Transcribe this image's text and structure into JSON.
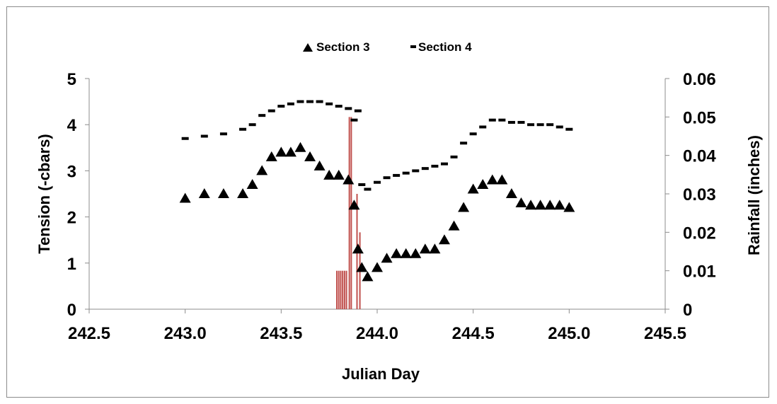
{
  "chart_data": {
    "type": "scatter",
    "title": "",
    "xlabel": "Julian Day",
    "ylabel": "Tension (-cbars)",
    "y2label": "Rainfall (inches)",
    "xlim": [
      242.5,
      245.5
    ],
    "ylim": [
      0,
      5
    ],
    "y2lim": [
      0,
      0.06
    ],
    "x_ticks": [
      "242.5",
      "243.0",
      "243.5",
      "244.0",
      "244.5",
      "245.0",
      "245.5"
    ],
    "y_ticks": [
      "0",
      "1",
      "2",
      "3",
      "4",
      "5"
    ],
    "y2_ticks": [
      "0",
      "0.01",
      "0.02",
      "0.03",
      "0.04",
      "0.05",
      "0.06"
    ],
    "grid": false,
    "legend_position": "top",
    "colors": {
      "section3": "#000000",
      "section4": "#000000",
      "rainfall": "#c0504d",
      "axis": "#8c8c8c"
    },
    "series": [
      {
        "name": "Section 3",
        "marker": "triangle",
        "x": [
          243.0,
          243.1,
          243.2,
          243.3,
          243.35,
          243.4,
          243.45,
          243.5,
          243.55,
          243.6,
          243.65,
          243.7,
          243.75,
          243.8,
          243.85,
          243.88,
          243.9,
          243.92,
          243.95,
          244.0,
          244.05,
          244.1,
          244.15,
          244.2,
          244.25,
          244.3,
          244.35,
          244.4,
          244.45,
          244.5,
          244.55,
          244.6,
          244.65,
          244.7,
          244.75,
          244.8,
          244.85,
          244.9,
          244.95,
          245.0
        ],
        "y": [
          2.4,
          2.5,
          2.5,
          2.5,
          2.7,
          3.0,
          3.3,
          3.4,
          3.4,
          3.5,
          3.3,
          3.1,
          2.9,
          2.9,
          2.8,
          2.25,
          1.3,
          0.9,
          0.7,
          0.9,
          1.1,
          1.2,
          1.2,
          1.2,
          1.3,
          1.3,
          1.5,
          1.8,
          2.2,
          2.6,
          2.7,
          2.8,
          2.8,
          2.5,
          2.3,
          2.25,
          2.25,
          2.25,
          2.25,
          2.2
        ]
      },
      {
        "name": "Section 4",
        "marker": "dash",
        "x": [
          243.0,
          243.1,
          243.2,
          243.3,
          243.35,
          243.4,
          243.45,
          243.5,
          243.55,
          243.6,
          243.65,
          243.7,
          243.75,
          243.8,
          243.85,
          243.88,
          243.9,
          243.92,
          243.95,
          244.0,
          244.05,
          244.1,
          244.15,
          244.2,
          244.25,
          244.3,
          244.35,
          244.4,
          244.45,
          244.5,
          244.55,
          244.6,
          244.65,
          244.7,
          244.75,
          244.8,
          244.85,
          244.9,
          244.95,
          245.0
        ],
        "y": [
          3.7,
          3.75,
          3.8,
          3.9,
          4.0,
          4.2,
          4.3,
          4.4,
          4.45,
          4.5,
          4.5,
          4.5,
          4.45,
          4.4,
          4.35,
          4.1,
          4.3,
          2.7,
          2.6,
          2.75,
          2.85,
          2.9,
          2.95,
          3.0,
          3.05,
          3.1,
          3.15,
          3.3,
          3.6,
          3.8,
          3.95,
          4.1,
          4.1,
          4.05,
          4.05,
          4.0,
          4.0,
          4.0,
          3.95,
          3.9
        ]
      },
      {
        "name": "Rainfall",
        "axis": "secondary",
        "type": "bar",
        "x": [
          243.79,
          243.8,
          243.81,
          243.82,
          243.83,
          243.84,
          243.855,
          243.865,
          243.895,
          243.91
        ],
        "values": [
          0.01,
          0.01,
          0.01,
          0.01,
          0.01,
          0.01,
          0.05,
          0.05,
          0.03,
          0.02
        ]
      }
    ]
  }
}
